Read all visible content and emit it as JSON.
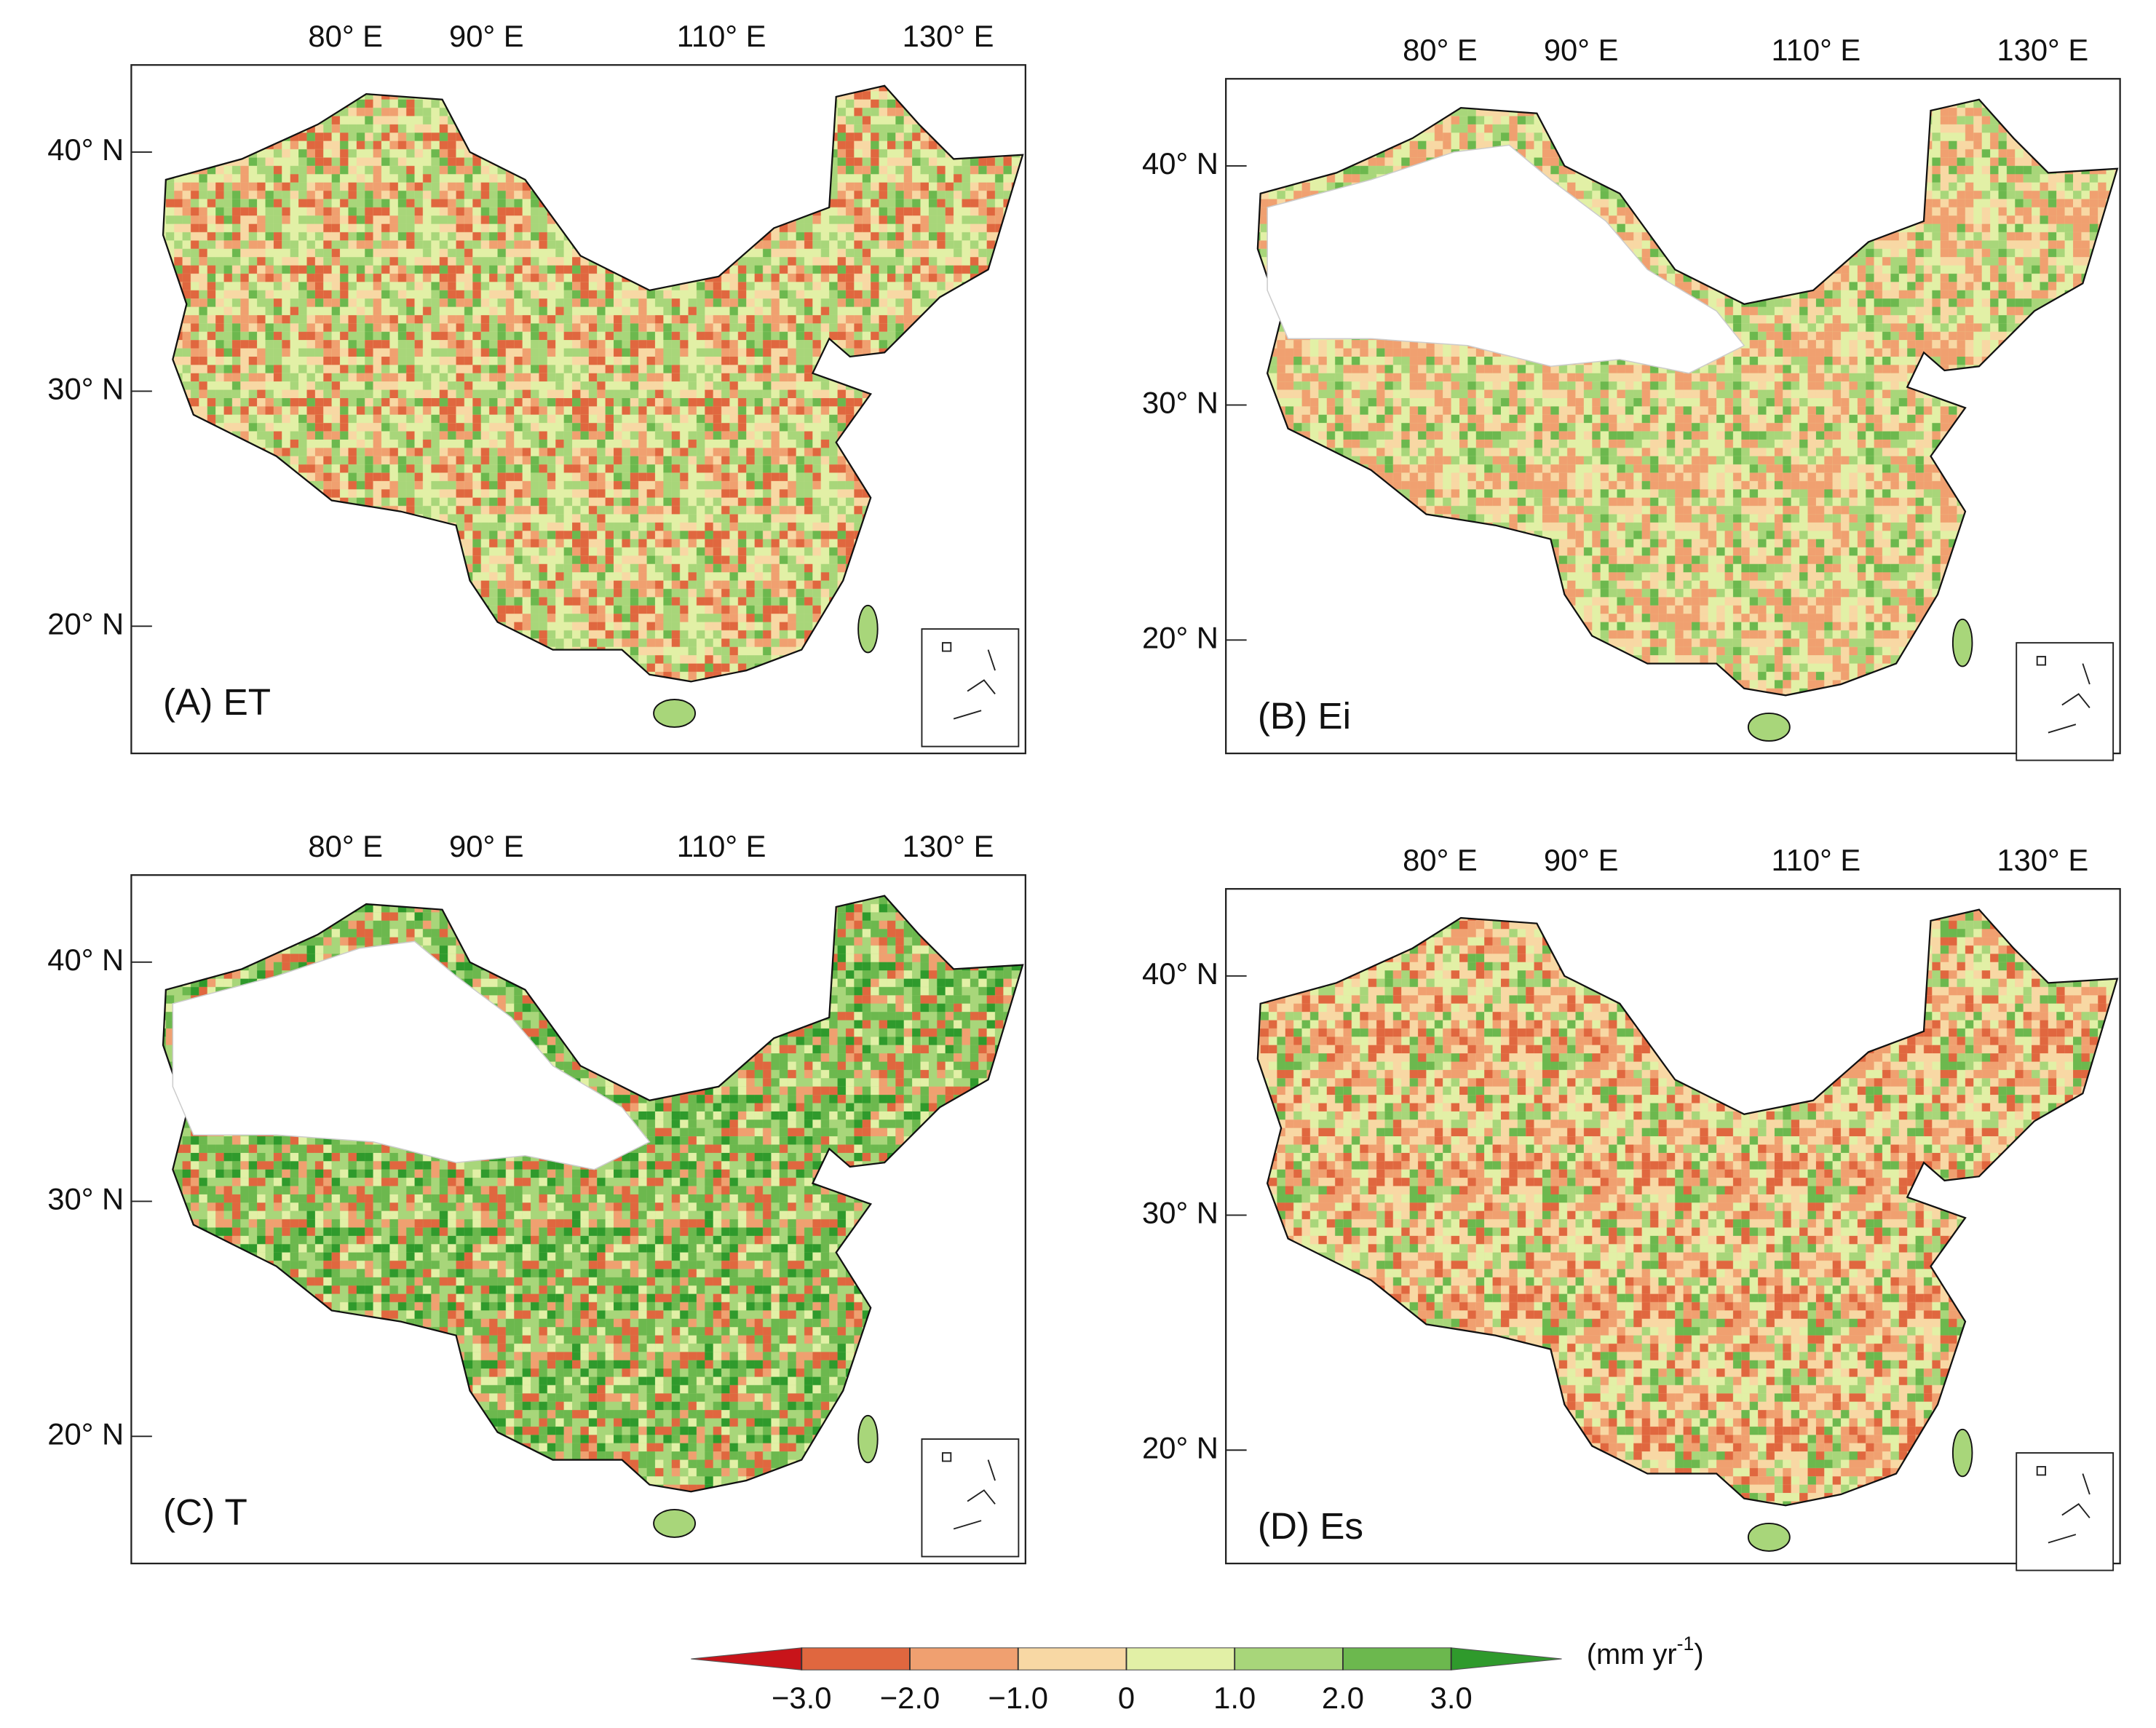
{
  "panels": [
    {
      "label": "(A) ET",
      "xtick_labels": [
        "80° E",
        "90° E",
        "110° E",
        "130° E"
      ],
      "ytick_labels": [
        "40° N",
        "30° N",
        "20° N"
      ]
    },
    {
      "label": "(B) Ei",
      "xtick_labels": [
        "80° E",
        "90° E",
        "110° E",
        "130° E"
      ],
      "ytick_labels": [
        "40° N",
        "30° N",
        "20° N"
      ]
    },
    {
      "label": "(C) T",
      "xtick_labels": [
        "80° E",
        "90° E",
        "110° E",
        "130° E"
      ],
      "ytick_labels": [
        "40° N",
        "30° N",
        "20° N"
      ]
    },
    {
      "label": "(D) Es",
      "xtick_labels": [
        "80° E",
        "90° E",
        "110° E",
        "130° E"
      ],
      "ytick_labels": [
        "40° N",
        "30° N",
        "20° N"
      ]
    }
  ],
  "colorbar": {
    "colors": [
      "#c8141a",
      "#e0673f",
      "#f0a070",
      "#f8d8a4",
      "#e2f0a6",
      "#a8d67a",
      "#6cb84e",
      "#2f9a2c"
    ],
    "ticks": [
      {
        "value": -3,
        "label": "−3.0"
      },
      {
        "value": -2,
        "label": "−2.0"
      },
      {
        "value": -1,
        "label": "−1.0"
      },
      0,
      {
        "value": 1,
        "label": "1.0"
      },
      {
        "value": 2,
        "label": "2.0"
      },
      {
        "value": 3,
        "label": "3.0"
      }
    ],
    "lim": [
      -3,
      3
    ],
    "unit_base": "(mm yr",
    "unit_exponent": "-1",
    "unit_close": ")"
  }
}
